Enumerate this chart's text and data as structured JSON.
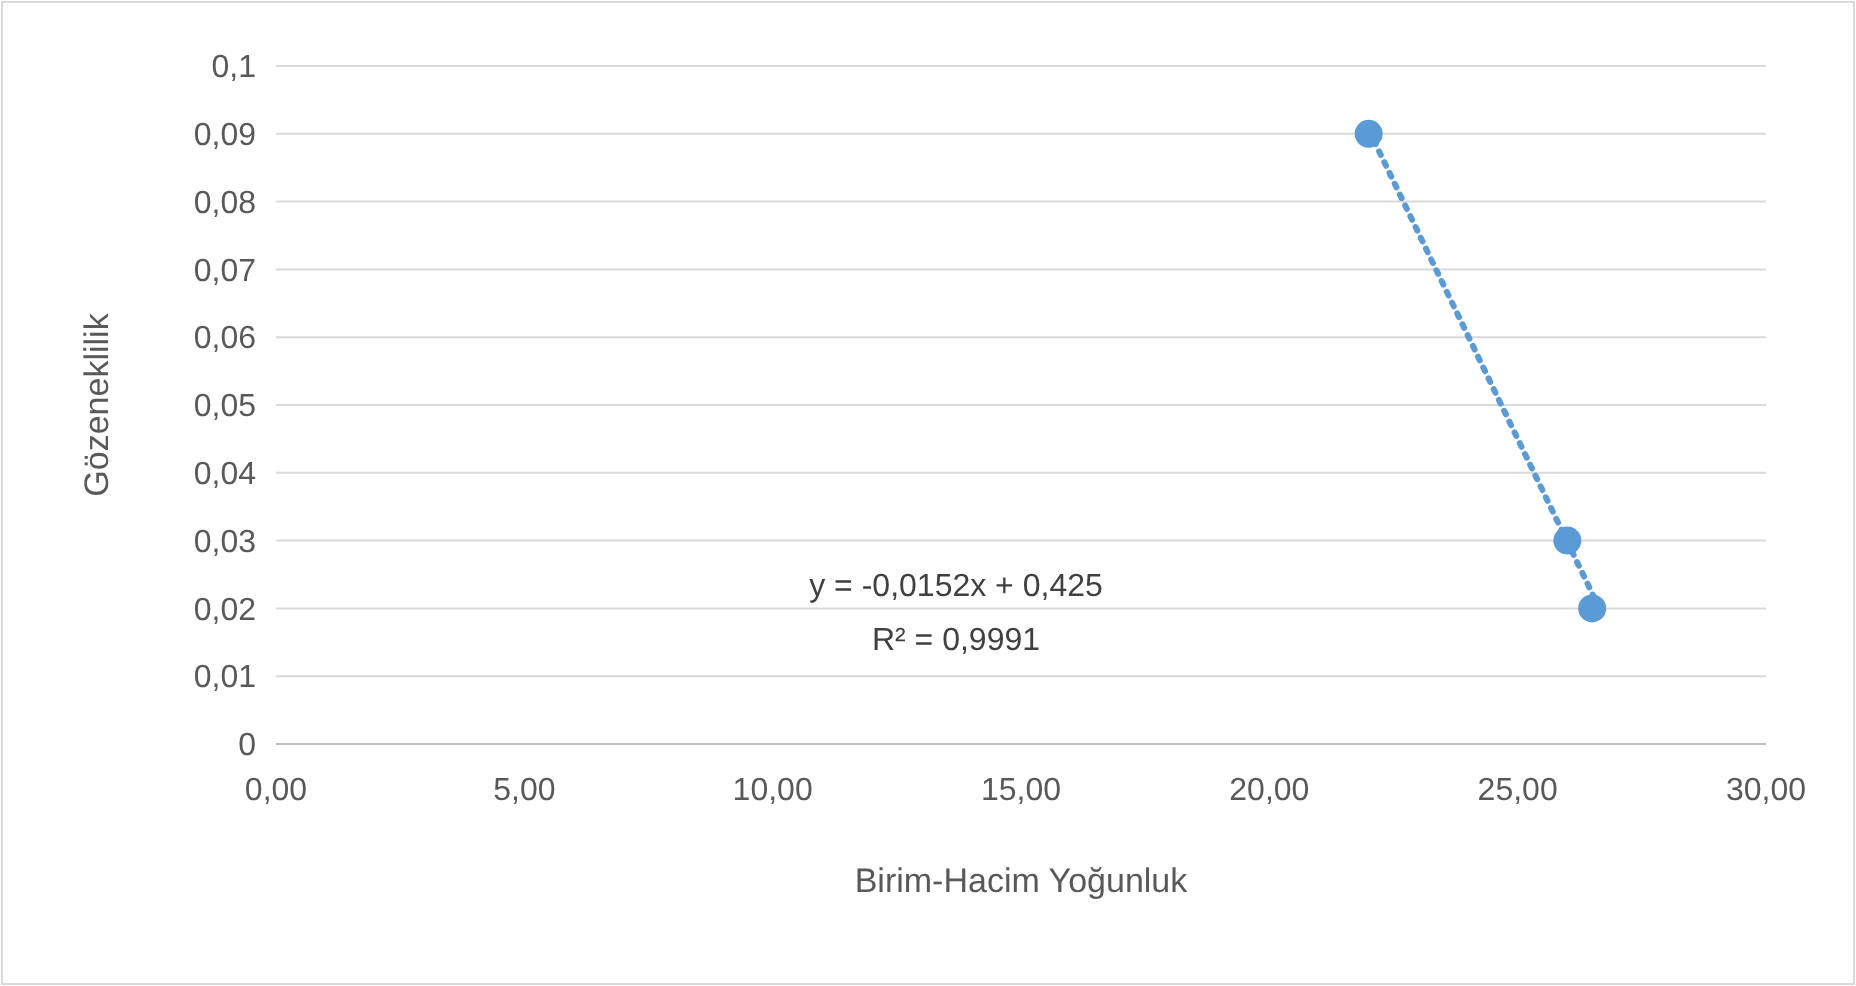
{
  "chart_data": {
    "type": "scatter",
    "xlabel": "Birim-Hacim Yoğunluk",
    "ylabel": "Gözeneklilik",
    "x": [
      22.0,
      26.0,
      26.5
    ],
    "series": [
      {
        "color": "#5b9bd5",
        "values": [
          0.09,
          0.03,
          0.02
        ],
        "marker": "circle"
      },
      {
        "type": "line",
        "color": "#5b9bd5",
        "x": [
          22.0,
          26.6
        ],
        "values": [
          0.0906,
          0.0207
        ],
        "line_style": "dotted",
        "marker": "none"
      }
    ],
    "xlim": [
      0,
      30
    ],
    "xticks": [
      {
        "value": 0,
        "label": "0,00"
      },
      {
        "value": 5,
        "label": "5,00"
      },
      {
        "value": 10,
        "label": "10,00"
      },
      {
        "value": 15,
        "label": "15,00"
      },
      {
        "value": 20,
        "label": "20,00"
      },
      {
        "value": 25,
        "label": "25,00"
      },
      {
        "value": 30,
        "label": "30,00"
      }
    ],
    "ylim": [
      0,
      0.1
    ],
    "yticks": [
      0,
      {
        "value": 0.01,
        "label": "0,01"
      },
      {
        "value": 0.02,
        "label": "0,02"
      },
      {
        "value": 0.03,
        "label": "0,03"
      },
      {
        "value": 0.04,
        "label": "0,04"
      },
      {
        "value": 0.05,
        "label": "0,05"
      },
      {
        "value": 0.06,
        "label": "0,06"
      },
      {
        "value": 0.07,
        "label": "0,07"
      },
      {
        "value": 0.08,
        "label": "0,08"
      },
      {
        "value": 0.09,
        "label": "0,09"
      },
      {
        "value": 0.1,
        "label": "0,1"
      }
    ],
    "grid": "y",
    "annotations": [
      "y = -0,0152x + 0,425",
      "R² = 0,9991"
    ]
  }
}
